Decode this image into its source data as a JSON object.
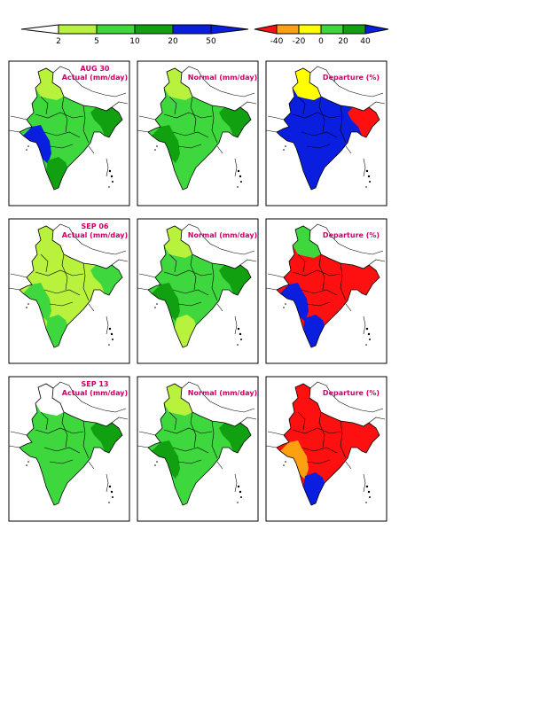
{
  "rain_legend": {
    "labels": [
      "2",
      "5",
      "10",
      "20",
      "50"
    ],
    "colors": [
      "#ffffff",
      "#b8f23c",
      "#3ed83e",
      "#10a010",
      "#0a1ee0",
      "#0a1ee0"
    ]
  },
  "departure_legend": {
    "labels": [
      "-40",
      "-20",
      "0",
      "20",
      "40"
    ],
    "colors": [
      "#ff1010",
      "#ffa010",
      "#ffff00",
      "#3ed83e",
      "#10a010",
      "#0a1ee0"
    ]
  },
  "rows": [
    {
      "date": "AUG 30",
      "actual_title": "Actual (mm/day)",
      "normal_title": "Normal (mm/day)",
      "departure_title": "Departure (%)"
    },
    {
      "date": "SEP 06",
      "actual_title": "Actual (mm/day)",
      "normal_title": "Normal (mm/day)",
      "departure_title": "Departure (%)"
    },
    {
      "date": "SEP 13",
      "actual_title": "Actual (mm/day)",
      "normal_title": "Normal (mm/day)",
      "departure_title": "Departure (%)"
    }
  ],
  "map_colors": {
    "actual": [
      {
        "base": "#3ed83e",
        "north": "#b8f23c",
        "west": "#0a1ee0",
        "east": "#10a010",
        "south": "#10a010"
      },
      {
        "base": "#b8f23c",
        "north": "#b8f23c",
        "west": "#3ed83e",
        "east": "#3ed83e",
        "south": "#3ed83e"
      },
      {
        "base": "#3ed83e",
        "north": "#ffffff",
        "west": "#3ed83e",
        "east": "#10a010",
        "south": "#3ed83e"
      }
    ],
    "normal": [
      {
        "base": "#3ed83e",
        "north": "#b8f23c",
        "west": "#10a010",
        "east": "#10a010",
        "south": "#3ed83e"
      },
      {
        "base": "#3ed83e",
        "north": "#b8f23c",
        "west": "#10a010",
        "east": "#10a010",
        "south": "#b8f23c"
      },
      {
        "base": "#3ed83e",
        "north": "#b8f23c",
        "west": "#10a010",
        "east": "#10a010",
        "south": "#3ed83e"
      }
    ],
    "departure": [
      {
        "base": "#0a1ee0",
        "north": "#ffff00",
        "west": "#0a1ee0",
        "east": "#ff1010",
        "south": "#0a1ee0"
      },
      {
        "base": "#ff1010",
        "north": "#3ed83e",
        "west": "#0a1ee0",
        "east": "#ff1010",
        "south": "#0a1ee0"
      },
      {
        "base": "#ff1010",
        "north": "#ff1010",
        "west": "#ffa010",
        "east": "#ff1010",
        "south": "#0a1ee0"
      }
    ]
  }
}
